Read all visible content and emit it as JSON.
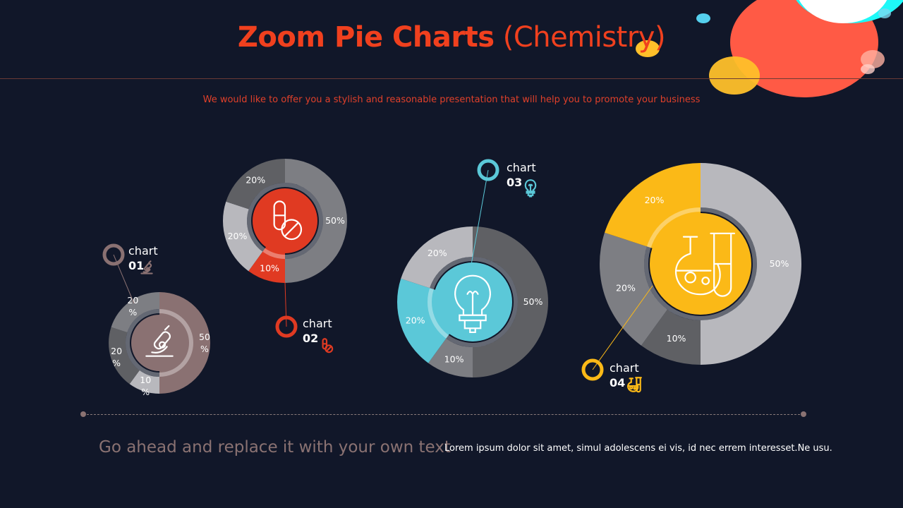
{
  "header": {
    "title_bold": "Zoom Pie Charts",
    "title_light": "(Chemistry)",
    "subtitle": "We would like to offer you a stylish and reasonable presentation that will help you to promote your business"
  },
  "footer": {
    "headline": "Go ahead and replace it with your own text",
    "body": "Lorem ipsum dolor sit amet, simul adolescens ei vis, id nec errem interesset.Ne usu."
  },
  "colors": {
    "background": "#111729",
    "title": "#f0401e",
    "grey_light": "#b8b8bd",
    "grey_mid": "#7d7e83",
    "grey_dark": "#5f6064"
  },
  "chart_data": [
    {
      "type": "pie",
      "donut": true,
      "label_word": "chart",
      "label_num": "01",
      "icon": "microscope-icon",
      "accent": "#8a7172",
      "slices": [
        {
          "value": 50,
          "label": "50\n%",
          "color": "#8a7172",
          "highlight": true
        },
        {
          "value": 10,
          "label": "10\n%",
          "color": "#b8b8bd"
        },
        {
          "value": 20,
          "label": "20\n%",
          "color": "#5f6064"
        },
        {
          "value": 20,
          "label": "20\n%",
          "color": "#7d7e83"
        }
      ]
    },
    {
      "type": "pie",
      "donut": true,
      "label_word": "chart",
      "label_num": "02",
      "icon": "pill-icon",
      "accent": "#e03a22",
      "slices": [
        {
          "value": 50,
          "label": "50%",
          "color": "#7d7e83"
        },
        {
          "value": 10,
          "label": "10%",
          "color": "#e03a22",
          "highlight": true
        },
        {
          "value": 20,
          "label": "20%",
          "color": "#b8b8bd"
        },
        {
          "value": 20,
          "label": "20%",
          "color": "#5f6064"
        }
      ]
    },
    {
      "type": "pie",
      "donut": true,
      "label_word": "chart",
      "label_num": "03",
      "icon": "lightbulb-icon",
      "accent": "#5bc8d8",
      "slices": [
        {
          "value": 50,
          "label": "50%",
          "color": "#5f6064"
        },
        {
          "value": 10,
          "label": "10%",
          "color": "#7d7e83"
        },
        {
          "value": 20,
          "label": "20%",
          "color": "#5bc8d8",
          "highlight": true
        },
        {
          "value": 20,
          "label": "20%",
          "color": "#b8b8bd"
        }
      ]
    },
    {
      "type": "pie",
      "donut": true,
      "label_word": "chart",
      "label_num": "04",
      "icon": "flask-icon",
      "accent": "#fbb917",
      "slices": [
        {
          "value": 50,
          "label": "50%",
          "color": "#b8b8bd"
        },
        {
          "value": 10,
          "label": "10%",
          "color": "#5f6064"
        },
        {
          "value": 20,
          "label": "20%",
          "color": "#7d7e83"
        },
        {
          "value": 20,
          "label": "20%",
          "color": "#fbb917",
          "highlight": true
        }
      ]
    }
  ]
}
